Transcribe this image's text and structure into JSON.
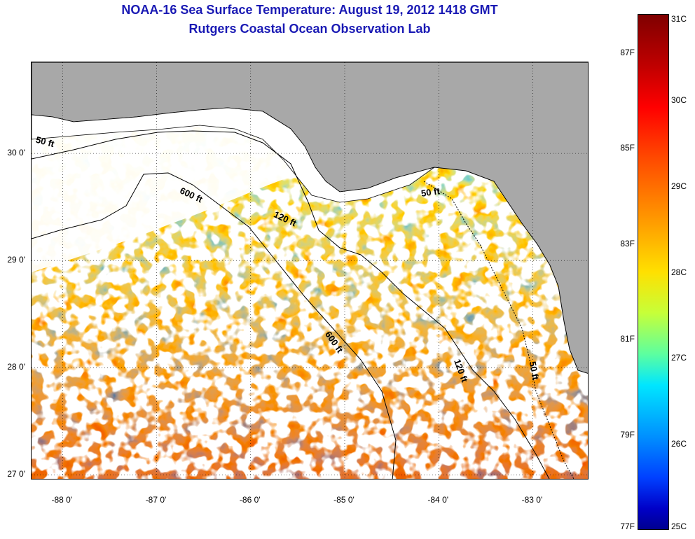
{
  "title": "NOAA-16 Sea Surface Temperature:  August 19, 2012 1418 GMT",
  "subtitle": "Rutgers Coastal Ocean Observation Lab",
  "lat_ticks": [
    {
      "value": 30.0,
      "label": "30 0'"
    },
    {
      "value": 29.0,
      "label": "29 0'"
    },
    {
      "value": 28.0,
      "label": "28 0'"
    },
    {
      "value": 27.0,
      "label": "27 0'"
    }
  ],
  "lon_ticks": [
    {
      "value": -88.0,
      "label": "-88 0'"
    },
    {
      "value": -87.0,
      "label": "-87 0'"
    },
    {
      "value": -86.0,
      "label": "-86 0'"
    },
    {
      "value": -85.0,
      "label": "-85 0'"
    },
    {
      "value": -84.0,
      "label": "-84 0'"
    },
    {
      "value": -83.0,
      "label": "-83 0'"
    }
  ],
  "extent": {
    "lon_min": -88.33,
    "lon_max": -82.4,
    "lat_min": 26.95,
    "lat_max": 30.85
  },
  "colorbar": {
    "celsius_labels": [
      {
        "value": 31,
        "label": "31C"
      },
      {
        "value": 30,
        "label": "30C"
      },
      {
        "value": 29,
        "label": "29C"
      },
      {
        "value": 28,
        "label": "28C"
      },
      {
        "value": 27,
        "label": "27C"
      },
      {
        "value": 26,
        "label": "26C"
      },
      {
        "value": 25,
        "label": "25C"
      }
    ],
    "fahrenheit_labels": [
      {
        "value": 87,
        "label": "87F"
      },
      {
        "value": 85,
        "label": "85F"
      },
      {
        "value": 83,
        "label": "83F"
      },
      {
        "value": 81,
        "label": "81F"
      },
      {
        "value": 79,
        "label": "79F"
      },
      {
        "value": 77,
        "label": "77F"
      }
    ],
    "range_c": [
      25,
      31
    ]
  },
  "isobaths": [
    {
      "label": "50 ft",
      "lon": -88.13,
      "lat": 30.1,
      "angle": 15
    },
    {
      "label": "600 ft",
      "lon": -86.6,
      "lat": 29.6,
      "angle": 25
    },
    {
      "label": "120 ft",
      "lon": -85.6,
      "lat": 29.38,
      "angle": 25
    },
    {
      "label": "50 ft",
      "lon": -84.03,
      "lat": 29.63,
      "angle": -8
    },
    {
      "label": "600 ft",
      "lon": -85.08,
      "lat": 28.23,
      "angle": 55
    },
    {
      "label": "120 ft",
      "lon": -83.73,
      "lat": 27.96,
      "angle": 70
    },
    {
      "label": "50 ft",
      "lon": -82.93,
      "lat": 27.96,
      "angle": 80
    }
  ],
  "colors": {
    "title": "#1a1ab4",
    "land": "#a8a8a8",
    "cloud": "#ffffff"
  }
}
